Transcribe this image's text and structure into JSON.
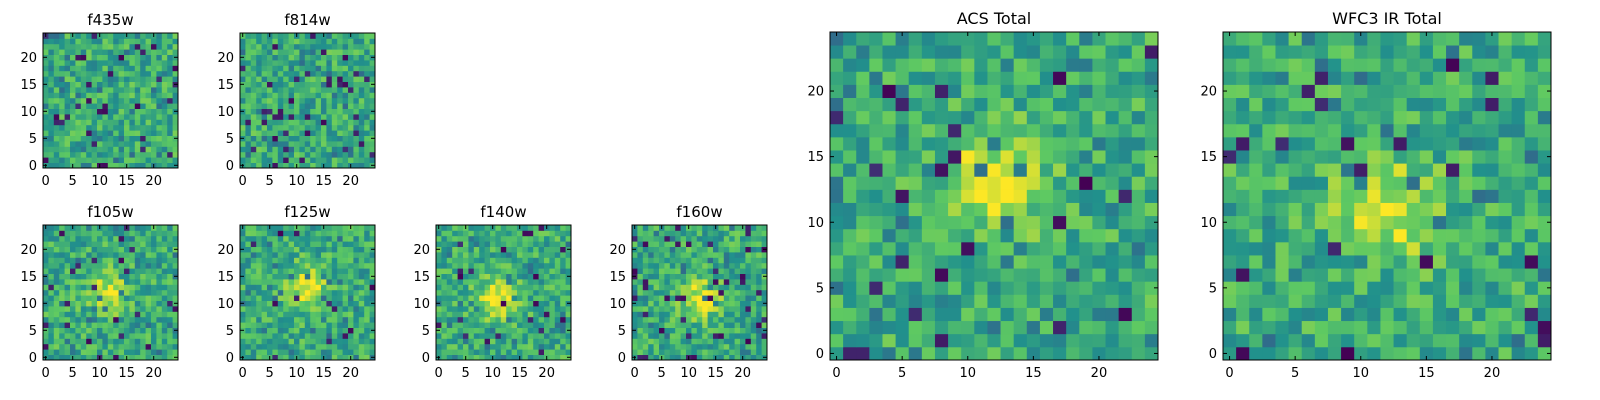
{
  "chart_data": [
    {
      "type": "heatmap",
      "title": "f435w",
      "grid": false,
      "colormap": "viridis-like",
      "nx": 25,
      "ny": 25,
      "xlim": [
        0,
        25
      ],
      "ylim": [
        0,
        25
      ],
      "x_ticks": [
        0,
        5,
        10,
        15,
        20
      ],
      "y_ticks": [
        0,
        5,
        10,
        15,
        20
      ],
      "note_values": "per-pixel noise field; values normalized 0-1",
      "seed": 11,
      "blob": null,
      "dark_rate": 0.05
    },
    {
      "type": "heatmap",
      "title": "f814w",
      "grid": false,
      "colormap": "viridis-like",
      "nx": 25,
      "ny": 25,
      "xlim": [
        0,
        25
      ],
      "ylim": [
        0,
        25
      ],
      "x_ticks": [
        0,
        5,
        10,
        15,
        20
      ],
      "y_ticks": [
        0,
        5,
        10,
        15,
        20
      ],
      "seed": 23,
      "blob": null,
      "dark_rate": 0.05
    },
    {
      "type": "heatmap",
      "title": "f105w",
      "grid": false,
      "colormap": "viridis-like",
      "nx": 25,
      "ny": 25,
      "xlim": [
        0,
        25
      ],
      "ylim": [
        0,
        25
      ],
      "x_ticks": [
        0,
        5,
        10,
        15,
        20
      ],
      "y_ticks": [
        0,
        5,
        10,
        15,
        20
      ],
      "seed": 37,
      "blob": [
        12,
        12
      ],
      "dark_rate": 0.03
    },
    {
      "type": "heatmap",
      "title": "f125w",
      "grid": false,
      "colormap": "viridis-like",
      "nx": 25,
      "ny": 25,
      "xlim": [
        0,
        25
      ],
      "ylim": [
        0,
        25
      ],
      "x_ticks": [
        0,
        5,
        10,
        15,
        20
      ],
      "y_ticks": [
        0,
        5,
        10,
        15,
        20
      ],
      "seed": 41,
      "blob": [
        12,
        13
      ],
      "dark_rate": 0.03
    },
    {
      "type": "heatmap",
      "title": "f140w",
      "grid": false,
      "colormap": "viridis-like",
      "nx": 25,
      "ny": 25,
      "xlim": [
        0,
        25
      ],
      "ylim": [
        0,
        25
      ],
      "x_ticks": [
        0,
        5,
        10,
        15,
        20
      ],
      "y_ticks": [
        0,
        5,
        10,
        15,
        20
      ],
      "seed": 53,
      "blob": [
        11,
        11
      ],
      "dark_rate": 0.04
    },
    {
      "type": "heatmap",
      "title": "f160w",
      "grid": false,
      "colormap": "viridis-like",
      "nx": 25,
      "ny": 25,
      "xlim": [
        0,
        25
      ],
      "ylim": [
        0,
        25
      ],
      "x_ticks": [
        0,
        5,
        10,
        15,
        20
      ],
      "y_ticks": [
        0,
        5,
        10,
        15,
        20
      ],
      "seed": 67,
      "blob": [
        12,
        11
      ],
      "dark_rate": 0.05
    },
    {
      "type": "heatmap",
      "title": "ACS Total",
      "grid": false,
      "colormap": "viridis-like",
      "nx": 25,
      "ny": 25,
      "xlim": [
        0,
        25
      ],
      "ylim": [
        0,
        25
      ],
      "x_ticks": [
        0,
        5,
        10,
        15,
        20
      ],
      "y_ticks": [
        0,
        5,
        10,
        15,
        20
      ],
      "seed": 79,
      "blob": [
        12,
        13
      ],
      "dark_rate": 0.04
    },
    {
      "type": "heatmap",
      "title": "WFC3 IR Total",
      "grid": false,
      "colormap": "viridis-like",
      "nx": 25,
      "ny": 25,
      "xlim": [
        0,
        25
      ],
      "ylim": [
        0,
        25
      ],
      "x_ticks": [
        0,
        5,
        10,
        15,
        20
      ],
      "y_ticks": [
        0,
        5,
        10,
        15,
        20
      ],
      "seed": 97,
      "blob": [
        12,
        11
      ],
      "dark_rate": 0.035
    }
  ],
  "colors": {
    "viridis_dark": "#440154",
    "viridis_blue": "#3b528b",
    "viridis_teal": "#21918c",
    "viridis_green": "#5ec962",
    "viridis_yellow": "#fde725",
    "axes_edge": "#000000"
  }
}
